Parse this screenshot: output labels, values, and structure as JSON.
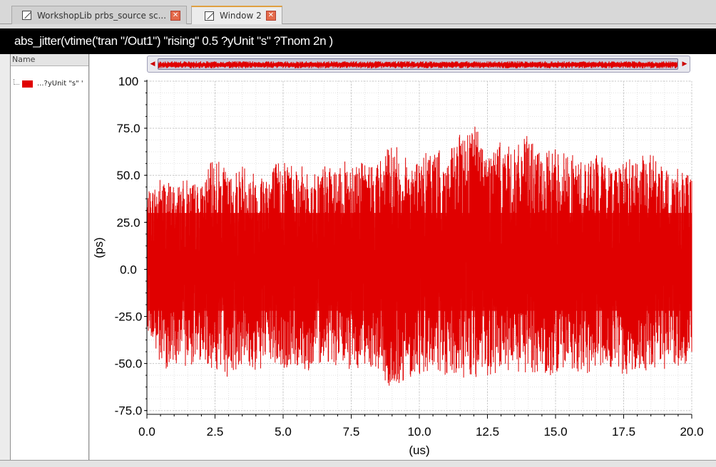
{
  "tabs": [
    {
      "label": "WorkshopLib prbs_source sc...",
      "active": false
    },
    {
      "label": "Window 2",
      "active": true
    }
  ],
  "plot_title": "abs_jitter(vtime('tran \"/Out1\") \"rising\" 0.5 ?yUnit \"s\" ?Tnom 2n )",
  "name_pane": {
    "header": "Name",
    "legend_label": "...?yUnit \"s\" '"
  },
  "colors": {
    "trace": "#e00000",
    "grid": "#c8c8c8"
  },
  "chart_data": {
    "type": "line",
    "xlabel": "(us)",
    "ylabel": "(ps)",
    "xlim": [
      0,
      20
    ],
    "ylim": [
      -77,
      100
    ],
    "x_ticks": [
      "0.0",
      "2.5",
      "5.0",
      "7.5",
      "10.0",
      "12.5",
      "15.0",
      "17.5",
      "20.0"
    ],
    "y_ticks": [
      "100",
      "75.0",
      "50.0",
      "25.0",
      "0.0",
      "-25.0",
      "-50.0",
      "-75.0"
    ],
    "grid": true,
    "series": [
      {
        "name": "...?yUnit \"s\" '",
        "x": [
          0.0,
          0.5,
          1.0,
          1.5,
          2.0,
          2.5,
          3.0,
          3.5,
          4.0,
          4.5,
          5.0,
          5.5,
          6.0,
          6.5,
          7.0,
          7.5,
          8.0,
          8.5,
          9.0,
          9.5,
          10.0,
          10.5,
          11.0,
          11.5,
          12.0,
          12.5,
          13.0,
          13.5,
          14.0,
          14.5,
          15.0,
          15.5,
          16.0,
          16.5,
          17.0,
          17.5,
          18.0,
          18.5,
          19.0,
          19.5,
          20.0
        ],
        "y_max": [
          40,
          50,
          46,
          48,
          45,
          62,
          50,
          57,
          52,
          55,
          60,
          58,
          50,
          56,
          52,
          62,
          56,
          58,
          68,
          60,
          58,
          66,
          60,
          72,
          80,
          64,
          68,
          64,
          72,
          60,
          66,
          62,
          58,
          62,
          56,
          60,
          58,
          64,
          52,
          56,
          48
        ],
        "y_min": [
          -30,
          -55,
          -50,
          -52,
          -48,
          -54,
          -58,
          -50,
          -56,
          -50,
          -55,
          -52,
          -54,
          -48,
          -52,
          -55,
          -50,
          -54,
          -68,
          -58,
          -56,
          -54,
          -60,
          -58,
          -58,
          -60,
          -56,
          -58,
          -56,
          -54,
          -58,
          -52,
          -56,
          -54,
          -52,
          -58,
          -52,
          -56,
          -54,
          -52,
          -50
        ]
      }
    ]
  }
}
